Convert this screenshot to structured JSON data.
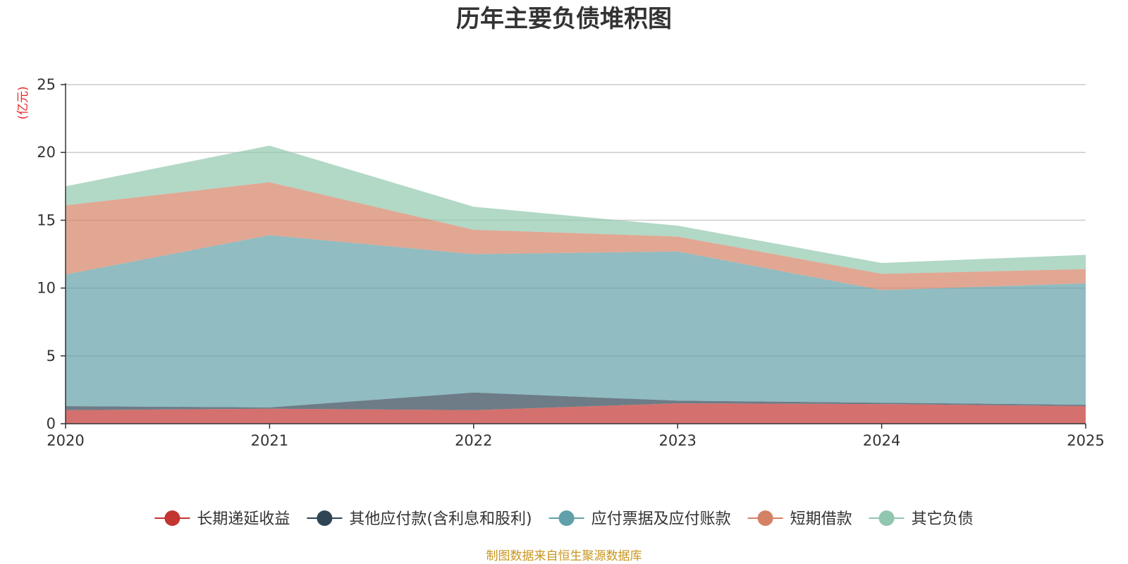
{
  "chart_data": {
    "type": "area",
    "stacked": true,
    "title": "历年主要负债堆积图",
    "ylabel": "(亿元)",
    "xlabel": "",
    "x": [
      "2020",
      "2021",
      "2022",
      "2023",
      "2024",
      "2025"
    ],
    "ylim": [
      0,
      25
    ],
    "yticks": [
      0,
      5,
      10,
      15,
      20,
      25
    ],
    "grid": true,
    "legend_position": "bottom",
    "series": [
      {
        "name": "长期递延收益",
        "color": "#c23531",
        "values": [
          1.0,
          1.1,
          1.0,
          1.5,
          1.45,
          1.3
        ]
      },
      {
        "name": "其他应付款(含利息和股利)",
        "color": "#2f4554",
        "values": [
          0.3,
          0.1,
          1.3,
          0.2,
          0.1,
          0.1
        ]
      },
      {
        "name": "应付票据及应付账款",
        "color": "#61a0a8",
        "values": [
          9.7,
          12.7,
          10.2,
          11.0,
          8.3,
          8.95
        ]
      },
      {
        "name": "短期借款",
        "color": "#d48265",
        "values": [
          5.1,
          3.9,
          1.8,
          1.1,
          1.2,
          1.05
        ]
      },
      {
        "name": "其它负债",
        "color": "#91c7ae",
        "values": [
          1.4,
          2.7,
          1.7,
          0.8,
          0.8,
          1.05
        ]
      }
    ],
    "source": "制图数据来自恒生聚源数据库"
  }
}
